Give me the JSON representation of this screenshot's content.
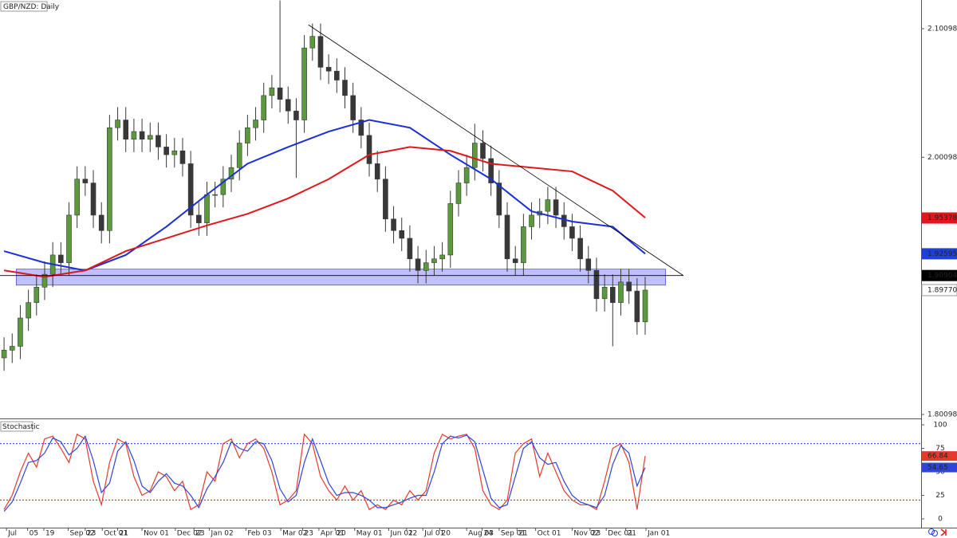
{
  "chart_data": [
    {
      "type": "candlestick",
      "title": "GBP/NZD: Daily",
      "xlim": [
        -0.5,
        113
      ],
      "ylim": [
        1.7979,
        2.1233
      ],
      "yticks": [
        2.10098,
        2.00098,
        1.80098
      ],
      "up_color": "#5b9a3c",
      "down_color": "#383838",
      "open": [
        1.845,
        1.851,
        1.854,
        1.876,
        1.888,
        1.9,
        1.91,
        1.925,
        1.919,
        1.956,
        1.984,
        1.981,
        1.956,
        1.944,
        2.024,
        2.03,
        2.015,
        2.021,
        2.015,
        2.018,
        2.009,
        2.003,
        2.006,
        1.996,
        1.956,
        1.95,
        1.972,
        1.972,
        1.984,
        1.993,
        2.012,
        2.024,
        2.03,
        2.049,
        2.055,
        2.046,
        2.037,
        2.03,
        2.086,
        2.095,
        2.071,
        2.068,
        2.061,
        2.049,
        2.03,
        2.018,
        1.996,
        1.984,
        1.953,
        1.944,
        1.938,
        1.922,
        1.913,
        1.919,
        1.922,
        1.925,
        1.965,
        1.981,
        1.993,
        2.012,
        2.0,
        1.981,
        1.956,
        1.922,
        1.919,
        1.947,
        1.956,
        1.959,
        1.968,
        1.956,
        1.947,
        1.938,
        1.922,
        1.913,
        1.891,
        1.9,
        1.888,
        1.904,
        1.897,
        1.873
      ],
      "high": [
        1.861,
        1.864,
        1.886,
        1.898,
        1.91,
        1.92,
        1.935,
        1.935,
        1.966,
        1.994,
        1.994,
        1.991,
        1.966,
        2.034,
        2.04,
        2.04,
        2.031,
        2.031,
        2.028,
        2.028,
        2.019,
        2.016,
        2.016,
        2.006,
        1.966,
        1.982,
        1.982,
        1.994,
        2.003,
        2.022,
        2.034,
        2.04,
        2.059,
        2.065,
        2.123,
        2.056,
        2.047,
        2.096,
        2.105,
        2.105,
        2.081,
        2.078,
        2.071,
        2.059,
        2.04,
        2.028,
        2.006,
        1.994,
        1.963,
        1.954,
        1.948,
        1.932,
        1.929,
        1.932,
        1.935,
        1.975,
        1.991,
        2.003,
        2.027,
        2.022,
        2.01,
        1.991,
        1.966,
        1.932,
        1.957,
        1.966,
        1.969,
        1.978,
        1.978,
        1.966,
        1.957,
        1.948,
        1.932,
        1.923,
        1.91,
        1.91,
        1.914,
        1.914,
        1.907,
        1.908
      ],
      "low": [
        1.835,
        1.841,
        1.844,
        1.866,
        1.878,
        1.89,
        1.9,
        1.909,
        1.909,
        1.946,
        1.971,
        1.946,
        1.934,
        1.934,
        2.014,
        2.005,
        2.005,
        2.005,
        2.005,
        1.999,
        1.993,
        1.993,
        1.986,
        1.946,
        1.94,
        1.94,
        1.962,
        1.962,
        1.974,
        1.983,
        2.002,
        2.014,
        2.02,
        2.039,
        2.036,
        2.027,
        1.985,
        2.02,
        2.076,
        2.061,
        2.058,
        2.051,
        2.039,
        2.02,
        2.008,
        1.986,
        1.974,
        1.943,
        1.934,
        1.928,
        1.912,
        1.903,
        1.903,
        1.909,
        1.912,
        1.915,
        1.955,
        1.971,
        1.983,
        1.99,
        1.971,
        1.946,
        1.912,
        1.909,
        1.909,
        1.937,
        1.946,
        1.949,
        1.946,
        1.937,
        1.928,
        1.912,
        1.903,
        1.881,
        1.881,
        1.854,
        1.878,
        1.887,
        1.863,
        1.863
      ],
      "close": [
        1.851,
        1.854,
        1.876,
        1.888,
        1.9,
        1.91,
        1.925,
        1.919,
        1.956,
        1.984,
        1.981,
        1.956,
        1.944,
        2.024,
        2.03,
        2.015,
        2.021,
        2.015,
        2.018,
        2.009,
        2.003,
        2.006,
        1.996,
        1.956,
        1.95,
        1.972,
        1.972,
        1.984,
        1.993,
        2.012,
        2.024,
        2.03,
        2.049,
        2.055,
        2.046,
        2.037,
        2.03,
        2.086,
        2.095,
        2.071,
        2.068,
        2.061,
        2.049,
        2.03,
        2.018,
        1.996,
        1.984,
        1.953,
        1.944,
        1.938,
        1.922,
        1.913,
        1.919,
        1.922,
        1.925,
        1.965,
        1.981,
        1.993,
        2.012,
        2.0,
        1.981,
        1.956,
        1.922,
        1.919,
        1.947,
        1.956,
        1.959,
        1.968,
        1.956,
        1.947,
        1.938,
        1.922,
        1.913,
        1.891,
        1.9,
        1.888,
        1.904,
        1.897,
        1.873,
        1.8977
      ],
      "lines": [
        {
          "color": "#1a2fd6",
          "x": [
            0,
            5,
            10,
            15,
            20,
            25,
            30,
            35,
            40,
            45,
            50,
            55,
            60,
            65,
            70,
            75,
            79
          ],
          "values": [
            1.928,
            1.919,
            1.913,
            1.925,
            1.947,
            1.972,
            1.996,
            2.009,
            2.021,
            2.03,
            2.024,
            2.003,
            1.984,
            1.959,
            1.951,
            1.947,
            1.926
          ]
        },
        {
          "color": "#e0181b",
          "x": [
            0,
            5,
            10,
            15,
            20,
            25,
            30,
            35,
            40,
            45,
            50,
            55,
            60,
            65,
            70,
            75,
            79
          ],
          "values": [
            1.913,
            1.908,
            1.913,
            1.928,
            1.938,
            1.948,
            1.957,
            1.969,
            1.984,
            2.003,
            2.009,
            2.006,
            1.996,
            1.993,
            1.99,
            1.975,
            1.954
          ]
        }
      ],
      "trendline": {
        "color": "#000000",
        "x": [
          37.5,
          83.7
        ],
        "y": [
          2.104,
          1.909
        ]
      },
      "zone": {
        "color": "#8c8cf5",
        "x": [
          1.5,
          81.5
        ],
        "y": [
          1.9016,
          1.914
        ]
      },
      "price_labels": [
        {
          "value": 1.95378,
          "color": "#e0181b"
        },
        {
          "value": 1.92595,
          "color": "#1f3fd9"
        },
        {
          "value": 1.90904,
          "color": "#000000"
        },
        {
          "value": 1.8977,
          "label": "1.89770",
          "color": "#ffffff"
        }
      ]
    },
    {
      "type": "line",
      "title": "Stochastic",
      "xlim": [
        -0.5,
        113
      ],
      "ylim": [
        -9.3,
        105.1
      ],
      "yticks": [
        100,
        75,
        50,
        25,
        0
      ],
      "levels": [
        80,
        20
      ],
      "xticks": [
        {
          "value": 0.3,
          "label": "Jul"
        },
        {
          "value": 2.9,
          "label": "05"
        },
        {
          "value": 4.9,
          "label": "19"
        },
        {
          "value": 7.9,
          "label": "Sep 02"
        },
        {
          "value": 10.0,
          "label": "23"
        },
        {
          "value": 12.1,
          "label": "Oct 01"
        },
        {
          "value": 14.0,
          "label": "21"
        },
        {
          "value": 17.0,
          "label": "Nov 01"
        },
        {
          "value": 21.1,
          "label": "Dec 02"
        },
        {
          "value": 23.4,
          "label": "23"
        },
        {
          "value": 25.3,
          "label": "Jan 02"
        },
        {
          "value": 29.8,
          "label": "Feb 03"
        },
        {
          "value": 34.1,
          "label": "Mar 02"
        },
        {
          "value": 36.8,
          "label": "23"
        },
        {
          "value": 38.8,
          "label": "Apr 01"
        },
        {
          "value": 40.8,
          "label": "20"
        },
        {
          "value": 43.2,
          "label": "May 01"
        },
        {
          "value": 47.4,
          "label": "Jun 01"
        },
        {
          "value": 49.6,
          "label": "22"
        },
        {
          "value": 51.6,
          "label": "Jul 01"
        },
        {
          "value": 53.7,
          "label": "20"
        },
        {
          "value": 57.0,
          "label": "Aug 03"
        },
        {
          "value": 58.9,
          "label": "24"
        },
        {
          "value": 61.0,
          "label": "Sep 01"
        },
        {
          "value": 63.2,
          "label": "21"
        },
        {
          "value": 65.5,
          "label": "Oct 01"
        },
        {
          "value": 70.0,
          "label": "Nov 02"
        },
        {
          "value": 72.2,
          "label": "23"
        },
        {
          "value": 74.2,
          "label": "Dec 01"
        },
        {
          "value": 76.6,
          "label": "21"
        },
        {
          "value": 79.1,
          "label": "Jan 01"
        }
      ],
      "series": [
        {
          "color": "#e23b2e",
          "values": [
            10,
            25,
            50,
            70,
            55,
            85,
            88,
            75,
            60,
            90,
            85,
            40,
            15,
            60,
            85,
            80,
            45,
            25,
            30,
            50,
            45,
            30,
            40,
            10,
            15,
            50,
            40,
            80,
            85,
            65,
            80,
            85,
            75,
            50,
            15,
            20,
            30,
            90,
            80,
            45,
            30,
            20,
            35,
            20,
            30,
            10,
            15,
            10,
            20,
            15,
            30,
            20,
            30,
            70,
            90,
            85,
            88,
            90,
            75,
            30,
            15,
            10,
            20,
            70,
            80,
            85,
            45,
            70,
            50,
            30,
            20,
            15,
            15,
            10,
            40,
            75,
            80,
            60,
            10,
            66.84
          ]
        },
        {
          "color": "#2f45d8",
          "values": [
            8,
            18,
            38,
            60,
            62,
            70,
            86,
            82,
            68,
            75,
            88,
            62,
            28,
            38,
            72,
            82,
            62,
            35,
            28,
            40,
            48,
            38,
            35,
            25,
            12,
            32,
            45,
            60,
            82,
            75,
            72,
            82,
            80,
            62,
            32,
            18,
            25,
            60,
            85,
            62,
            38,
            25,
            28,
            28,
            25,
            20,
            12,
            12,
            15,
            18,
            22,
            25,
            25,
            50,
            80,
            88,
            86,
            89,
            82,
            52,
            22,
            12,
            15,
            45,
            75,
            82,
            65,
            58,
            60,
            40,
            25,
            18,
            15,
            12,
            25,
            58,
            78,
            70,
            35,
            54.65
          ]
        }
      ]
    }
  ]
}
